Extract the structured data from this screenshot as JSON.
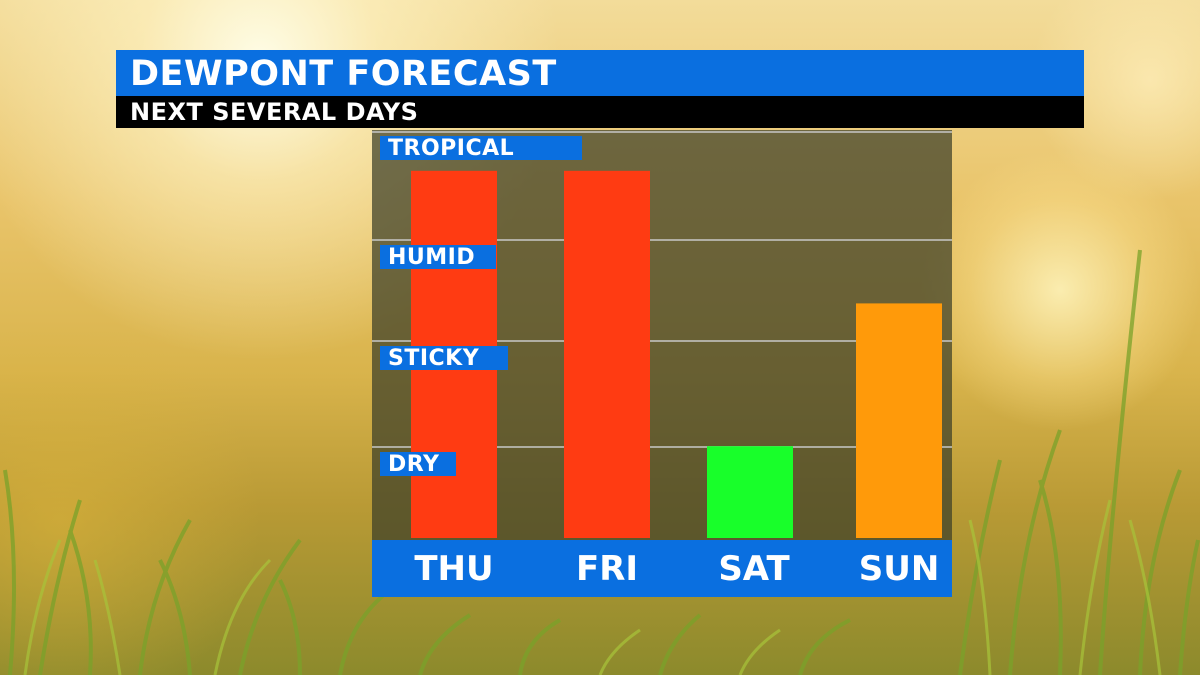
{
  "header": {
    "title": "DEWPONT FORECAST",
    "subtitle": "NEXT SEVERAL DAYS"
  },
  "chart_data": {
    "type": "bar",
    "title": "DEWPONT FORECAST",
    "subtitle": "NEXT SEVERAL DAYS",
    "categories": [
      "THU",
      "FRI",
      "SAT",
      "SUN"
    ],
    "values": [
      3.6,
      3.6,
      0.9,
      2.3
    ],
    "bar_colors": [
      "#ff3b12",
      "#ff3b12",
      "#18ff2a",
      "#ff9a0a"
    ],
    "y_levels": [
      "DRY",
      "STICKY",
      "HUMID",
      "TROPICAL"
    ],
    "ylim": [
      0,
      4
    ],
    "grid": true,
    "xlabel": "",
    "ylabel": ""
  },
  "colors": {
    "accent_blue": "#0a6fe0",
    "subtitle_black": "#000000"
  }
}
